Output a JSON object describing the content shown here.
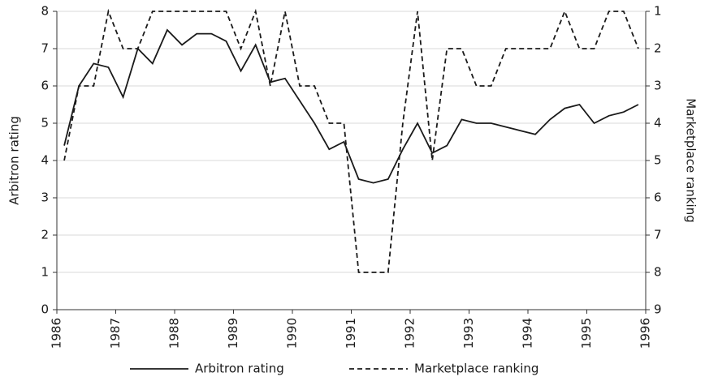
{
  "chart_data": {
    "type": "line",
    "xlim": [
      1986,
      1996
    ],
    "xticks": [
      1986,
      1987,
      1988,
      1989,
      1990,
      1991,
      1992,
      1993,
      1994,
      1995,
      1996
    ],
    "ylim": [
      0,
      8
    ],
    "yticks": [
      0,
      1,
      2,
      3,
      4,
      5,
      6,
      7,
      8
    ],
    "y2lim": [
      9,
      1
    ],
    "y2ticks": [
      1,
      2,
      3,
      4,
      5,
      6,
      7,
      8,
      9
    ],
    "ylabel": "Arbitron rating",
    "y2label": "Marketplace ranking",
    "grid": true,
    "legend": "bottom",
    "x": [
      1986.125,
      1986.375,
      1986.625,
      1986.875,
      1987.125,
      1987.375,
      1987.625,
      1987.875,
      1988.125,
      1988.375,
      1988.625,
      1988.875,
      1989.125,
      1989.375,
      1989.625,
      1989.875,
      1990.125,
      1990.375,
      1990.625,
      1990.875,
      1991.125,
      1991.375,
      1991.625,
      1991.875,
      1992.125,
      1992.375,
      1992.625,
      1992.875,
      1993.125,
      1993.375,
      1993.625,
      1993.875,
      1994.125,
      1994.375,
      1994.625,
      1994.875,
      1995.125,
      1995.375,
      1995.625,
      1995.875
    ],
    "series": [
      {
        "name": "Arbitron rating",
        "color": "#1a1a1a",
        "dashed": false,
        "values": [
          4.4,
          6.0,
          6.6,
          6.5,
          5.7,
          7.0,
          6.6,
          7.5,
          7.1,
          7.4,
          7.4,
          7.2,
          6.4,
          7.1,
          6.1,
          6.2,
          5.6,
          5.0,
          4.3,
          4.5,
          3.5,
          3.4,
          3.5,
          4.3,
          5.0,
          4.2,
          4.4,
          5.1,
          5.0,
          5.0,
          4.9,
          4.8,
          4.7,
          5.1,
          5.4,
          5.5,
          5.0,
          5.2,
          5.3,
          5.5
        ]
      },
      {
        "name": "Marketplace ranking",
        "color": "#1a1a1a",
        "dashed": true,
        "axis": "y2",
        "values": [
          5,
          3,
          3,
          1,
          2,
          2,
          1,
          1,
          1,
          1,
          1,
          1,
          2,
          1,
          3,
          1,
          3,
          3,
          4,
          4,
          8,
          8,
          8,
          4,
          1,
          5,
          2,
          2,
          3,
          3,
          2,
          2,
          2,
          2,
          1,
          2,
          2,
          1,
          1,
          2
        ]
      }
    ]
  }
}
